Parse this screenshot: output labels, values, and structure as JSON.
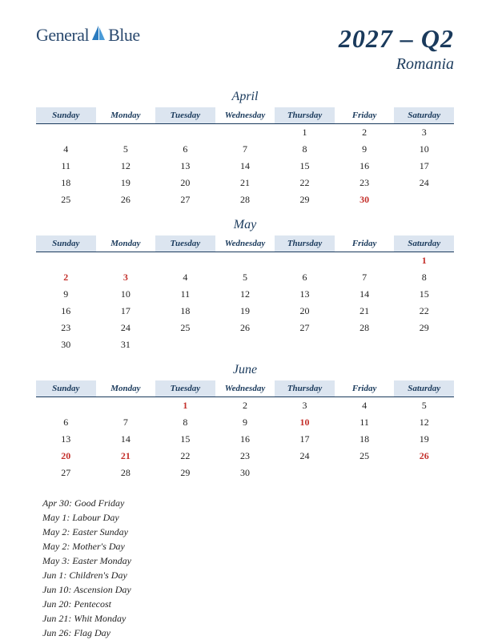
{
  "logo": {
    "text1": "General",
    "text2": "Blue"
  },
  "title": {
    "year_quarter": "2027 – Q2",
    "country": "Romania"
  },
  "colors": {
    "header_text": "#1a3a5c",
    "header_bg": "#dce5f0",
    "holiday": "#c4302b",
    "normal": "#222222",
    "background": "#ffffff"
  },
  "weekdays": [
    "Sunday",
    "Monday",
    "Tuesday",
    "Wednesday",
    "Thursday",
    "Friday",
    "Saturday"
  ],
  "months": [
    {
      "name": "April",
      "weeks": [
        [
          null,
          null,
          null,
          null,
          {
            "d": 1
          },
          {
            "d": 2
          },
          {
            "d": 3
          }
        ],
        [
          {
            "d": 4
          },
          {
            "d": 5
          },
          {
            "d": 6
          },
          {
            "d": 7
          },
          {
            "d": 8
          },
          {
            "d": 9
          },
          {
            "d": 10
          }
        ],
        [
          {
            "d": 11
          },
          {
            "d": 12
          },
          {
            "d": 13
          },
          {
            "d": 14
          },
          {
            "d": 15
          },
          {
            "d": 16
          },
          {
            "d": 17
          }
        ],
        [
          {
            "d": 18
          },
          {
            "d": 19
          },
          {
            "d": 20
          },
          {
            "d": 21
          },
          {
            "d": 22
          },
          {
            "d": 23
          },
          {
            "d": 24
          }
        ],
        [
          {
            "d": 25
          },
          {
            "d": 26
          },
          {
            "d": 27
          },
          {
            "d": 28
          },
          {
            "d": 29
          },
          {
            "d": 30,
            "h": true
          },
          null
        ]
      ]
    },
    {
      "name": "May",
      "weeks": [
        [
          null,
          null,
          null,
          null,
          null,
          null,
          {
            "d": 1,
            "h": true
          }
        ],
        [
          {
            "d": 2,
            "h": true
          },
          {
            "d": 3,
            "h": true
          },
          {
            "d": 4
          },
          {
            "d": 5
          },
          {
            "d": 6
          },
          {
            "d": 7
          },
          {
            "d": 8
          }
        ],
        [
          {
            "d": 9
          },
          {
            "d": 10
          },
          {
            "d": 11
          },
          {
            "d": 12
          },
          {
            "d": 13
          },
          {
            "d": 14
          },
          {
            "d": 15
          }
        ],
        [
          {
            "d": 16
          },
          {
            "d": 17
          },
          {
            "d": 18
          },
          {
            "d": 19
          },
          {
            "d": 20
          },
          {
            "d": 21
          },
          {
            "d": 22
          }
        ],
        [
          {
            "d": 23
          },
          {
            "d": 24
          },
          {
            "d": 25
          },
          {
            "d": 26
          },
          {
            "d": 27
          },
          {
            "d": 28
          },
          {
            "d": 29
          }
        ],
        [
          {
            "d": 30
          },
          {
            "d": 31
          },
          null,
          null,
          null,
          null,
          null
        ]
      ]
    },
    {
      "name": "June",
      "weeks": [
        [
          null,
          null,
          {
            "d": 1,
            "h": true
          },
          {
            "d": 2
          },
          {
            "d": 3
          },
          {
            "d": 4
          },
          {
            "d": 5
          }
        ],
        [
          {
            "d": 6
          },
          {
            "d": 7
          },
          {
            "d": 8
          },
          {
            "d": 9
          },
          {
            "d": 10,
            "h": true
          },
          {
            "d": 11
          },
          {
            "d": 12
          }
        ],
        [
          {
            "d": 13
          },
          {
            "d": 14
          },
          {
            "d": 15
          },
          {
            "d": 16
          },
          {
            "d": 17
          },
          {
            "d": 18
          },
          {
            "d": 19
          }
        ],
        [
          {
            "d": 20,
            "h": true
          },
          {
            "d": 21,
            "h": true
          },
          {
            "d": 22
          },
          {
            "d": 23
          },
          {
            "d": 24
          },
          {
            "d": 25
          },
          {
            "d": 26,
            "h": true
          }
        ],
        [
          {
            "d": 27
          },
          {
            "d": 28
          },
          {
            "d": 29
          },
          {
            "d": 30
          },
          null,
          null,
          null
        ]
      ]
    }
  ],
  "holiday_list": [
    "Apr 30: Good Friday",
    "May 1: Labour Day",
    "May 2: Easter Sunday",
    "May 2: Mother's Day",
    "May 3: Easter Monday",
    "Jun 1: Children's Day",
    "Jun 10: Ascension Day",
    "Jun 20: Pentecost",
    "Jun 21: Whit Monday",
    "Jun 26: Flag Day"
  ]
}
